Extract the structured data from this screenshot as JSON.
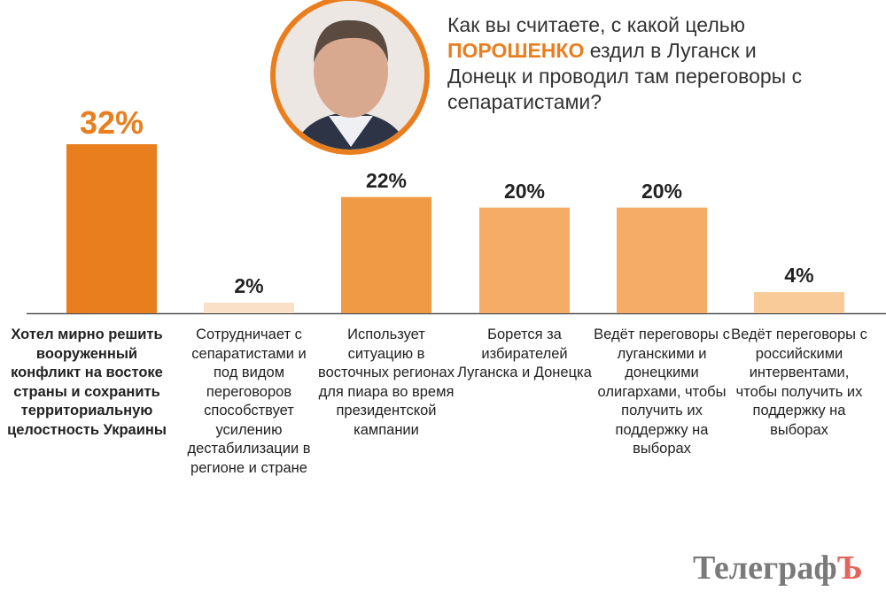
{
  "question": {
    "before": "Как вы считаете, с какой целью ",
    "highlight": "ПОРОШЕНКО",
    "after": " ездил в Луганск и Донецк и проводил там переговоры с сепаратистами?"
  },
  "logo": {
    "main": "Телеграф",
    "accent": "Ъ"
  },
  "colors": {
    "accent": "#e97e1f",
    "bars": [
      "#e97e1f",
      "#fbe0c8",
      "#f09a45",
      "#f5ac66",
      "#f5ac66",
      "#f9cb98"
    ]
  },
  "chart_data": {
    "type": "bar",
    "categories": [
      "Хотел мирно решить вооруженный конфликт на востоке страны и сохранить территориальную целостность Украины",
      "Сотрудничает с сепаратистами и под видом переговоров способствует усилению дестабилизации в регионе и стране",
      "Использует ситуацию в восточных регионах для пиара во время президентской кампании",
      "Борется за избирателей Луганска и Донецка",
      "Ведёт переговоры с луганскими и донецкими олигархами, чтобы получить их поддержку на выборах",
      "Ведёт переговоры с российскими интервентами, чтобы получить их поддержку на выборах"
    ],
    "values": [
      32,
      2,
      22,
      20,
      20,
      4
    ],
    "labels": [
      "32%",
      "2%",
      "22%",
      "20%",
      "20%",
      "4%"
    ],
    "ylim": [
      0,
      32
    ],
    "grid": false
  }
}
